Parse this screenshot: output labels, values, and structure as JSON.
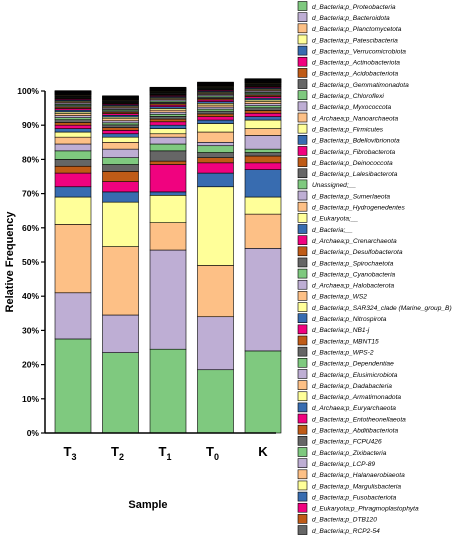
{
  "chart_data": {
    "type": "bar",
    "stacked": true,
    "xlabel": "Sample",
    "ylabel": "Relative Frequency",
    "ylim": [
      0,
      100
    ],
    "yticks": [
      "0%",
      "10%",
      "20%",
      "30%",
      "40%",
      "50%",
      "60%",
      "70%",
      "80%",
      "90%",
      "100%"
    ],
    "categories": [
      {
        "main": "T",
        "sub": "3"
      },
      {
        "main": "T",
        "sub": "2"
      },
      {
        "main": "T",
        "sub": "1"
      },
      {
        "main": "T",
        "sub": "0"
      },
      {
        "main": "K",
        "sub": ""
      }
    ],
    "series": [
      {
        "name": "d_Bacteria;p_Proteobacteria",
        "color": "#7fc97f",
        "values": [
          27.5,
          23.5,
          24.5,
          18.5,
          24
        ]
      },
      {
        "name": "d_Bacteria;p_Bacteroidota",
        "color": "#beaed4",
        "values": [
          13.5,
          11,
          29,
          15.5,
          30
        ]
      },
      {
        "name": "d_Bacteria;p_Planctomycetota",
        "color": "#fdc086",
        "values": [
          20,
          20,
          8,
          15,
          10
        ]
      },
      {
        "name": "d_Bacteria;p_Patescibacteria",
        "color": "#ffff99",
        "values": [
          8,
          13,
          8,
          23,
          5
        ]
      },
      {
        "name": "d_Bacteria;p_Verrucomicrobiota",
        "color": "#386cb0",
        "values": [
          3,
          3,
          1,
          4,
          8
        ]
      },
      {
        "name": "d_Bacteria;p_Actinobacteriota",
        "color": "#f0027f",
        "values": [
          4,
          3,
          8,
          3,
          2
        ]
      },
      {
        "name": "d_Bacteria;p_Acidobacteriota",
        "color": "#bf5b17",
        "values": [
          2,
          3,
          1,
          1.5,
          2
        ]
      },
      {
        "name": "d_Bacteria;p_Gemmatimonadota",
        "color": "#666666",
        "values": [
          2,
          2,
          3,
          1.5,
          1
        ]
      },
      {
        "name": "d_Bacteria;p_Chloroflexi",
        "color": "#7fc97f",
        "values": [
          2.5,
          2,
          2,
          2,
          1
        ]
      },
      {
        "name": "d_Bacteria;p_Myxococcota",
        "color": "#beaed4",
        "values": [
          2,
          2.5,
          2,
          1,
          4
        ]
      },
      {
        "name": "d_Archaea;p_Nanoarchaeota",
        "color": "#fdc086",
        "values": [
          2,
          2,
          1,
          3,
          2
        ]
      },
      {
        "name": "d_Bacteria;p_Firmicutes",
        "color": "#ffff99",
        "values": [
          1.5,
          1.5,
          1.5,
          2.5,
          2.5
        ]
      },
      {
        "name": "d_Bacteria;p_Bdellovibrionota",
        "color": "#386cb0",
        "values": [
          1,
          1,
          1,
          1,
          1
        ]
      },
      {
        "name": "d_Bacteria;p_Fibrobacterota",
        "color": "#f0027f",
        "values": [
          1,
          1,
          1,
          1,
          1
        ]
      },
      {
        "name": "d_Bacteria;p_Deinococcota",
        "color": "#bf5b17",
        "values": [
          0.8,
          0.8,
          0.8,
          0.8,
          0.8
        ]
      },
      {
        "name": "d_Bacteria;p_Lalesibacterota",
        "color": "#666666",
        "values": [
          0.8,
          0.8,
          0.8,
          0.8,
          0.8
        ]
      },
      {
        "name": "Unassigned;__",
        "color": "#7fc97f",
        "values": [
          0.6,
          0.6,
          0.6,
          0.6,
          0.6
        ]
      },
      {
        "name": "d_Bacteria;p_Sumerlaeota",
        "color": "#beaed4",
        "values": [
          0.6,
          0.6,
          0.6,
          0.6,
          0.6
        ]
      },
      {
        "name": "d_Bacteria;p_Hydrogenedentes",
        "color": "#fdc086",
        "values": [
          0.6,
          0.6,
          0.6,
          0.6,
          0.6
        ]
      },
      {
        "name": "d_Eukaryota;__",
        "color": "#ffff99",
        "values": [
          0.5,
          0.5,
          0.5,
          0.5,
          0.5
        ]
      },
      {
        "name": "d_Bacteria;__",
        "color": "#386cb0",
        "values": [
          0.5,
          0.5,
          0.5,
          0.5,
          0.5
        ]
      },
      {
        "name": "d_Archaea;p_Crenarchaeota",
        "color": "#f0027f",
        "values": [
          0.5,
          0.5,
          0.5,
          0.5,
          0.5
        ]
      },
      {
        "name": "d_Bacteria;p_Desulfobacterota",
        "color": "#bf5b17",
        "values": [
          0.4,
          0.4,
          0.4,
          0.4,
          0.4
        ]
      },
      {
        "name": "d_Bacteria;p_Spirochaetota",
        "color": "#666666",
        "values": [
          0.4,
          0.4,
          0.4,
          0.4,
          0.4
        ]
      },
      {
        "name": "d_Bacteria;p_Cyanobacteria",
        "color": "#7fc97f",
        "values": [
          0.4,
          0.4,
          0.4,
          0.4,
          0.4
        ]
      },
      {
        "name": "d_Archaea;p_Halobacterota",
        "color": "#beaed4",
        "values": [
          0.4,
          0.4,
          0.4,
          0.4,
          0.4
        ]
      },
      {
        "name": "d_Bacteria;p_WS2",
        "color": "#fdc086",
        "values": [
          0.3,
          0.3,
          0.3,
          0.3,
          0.3
        ]
      },
      {
        "name": "d_Bacteria;p_SAR324_clade (Marine_group_B)",
        "color": "#ffff99",
        "values": [
          0.3,
          0.3,
          0.3,
          0.3,
          0.3
        ]
      },
      {
        "name": "d_Bacteria;p_Nitrospirota",
        "color": "#386cb0",
        "values": [
          0.3,
          0.3,
          0.3,
          0.3,
          0.3
        ]
      },
      {
        "name": "d_Bacteria;p_NB1-j",
        "color": "#f0027f",
        "values": [
          0.3,
          0.3,
          0.3,
          0.3,
          0.3
        ]
      },
      {
        "name": "d_Bacteria;p_MBNT15",
        "color": "#bf5b17",
        "values": [
          0.2,
          0.2,
          0.2,
          0.2,
          0.2
        ]
      },
      {
        "name": "d_Bacteria;p_WPS-2",
        "color": "#666666",
        "values": [
          0.2,
          0.2,
          0.2,
          0.2,
          0.2
        ]
      },
      {
        "name": "d_Bacteria;p_Dependentiae",
        "color": "#7fc97f",
        "values": [
          0.2,
          0.2,
          0.2,
          0.2,
          0.2
        ]
      },
      {
        "name": "d_Bacteria;p_Elusimicrobiota",
        "color": "#beaed4",
        "values": [
          0.2,
          0.2,
          0.2,
          0.2,
          0.2
        ]
      },
      {
        "name": "d_Bacteria;p_Dadabacteria",
        "color": "#fdc086",
        "values": [
          0.2,
          0.2,
          0.2,
          0.2,
          0.2
        ]
      },
      {
        "name": "d_Bacteria;p_Armatimonadota",
        "color": "#ffff99",
        "values": [
          0.2,
          0.2,
          0.2,
          0.2,
          0.2
        ]
      },
      {
        "name": "d_Archaea;p_Euryarchaeota",
        "color": "#386cb0",
        "values": [
          0.1,
          0.1,
          0.1,
          0.1,
          0.1
        ]
      },
      {
        "name": "d_Bacteria;p_Entotheonellaeota",
        "color": "#f0027f",
        "values": [
          0.1,
          0.1,
          0.1,
          0.1,
          0.1
        ]
      },
      {
        "name": "d_Bacteria;p_Abditibacteriota",
        "color": "#bf5b17",
        "values": [
          0.1,
          0.1,
          0.1,
          0.1,
          0.1
        ]
      },
      {
        "name": "d_Bacteria;p_FCPU426",
        "color": "#666666",
        "values": [
          0.1,
          0.1,
          0.1,
          0.1,
          0.1
        ]
      },
      {
        "name": "d_Bacteria;p_Zixibacteria",
        "color": "#7fc97f",
        "values": [
          0.1,
          0.1,
          0.1,
          0.1,
          0.1
        ]
      },
      {
        "name": "d_Bacteria;p_LCP-89",
        "color": "#beaed4",
        "values": [
          0.1,
          0.1,
          0.1,
          0.1,
          0.1
        ]
      },
      {
        "name": "d_Bacteria;p_Halanaerobiaeota",
        "color": "#fdc086",
        "values": [
          0.1,
          0.1,
          0.1,
          0.1,
          0.1
        ]
      },
      {
        "name": "d_Bacteria;p_Margulisbacteria",
        "color": "#ffff99",
        "values": [
          0.1,
          0.1,
          0.1,
          0.1,
          0.1
        ]
      },
      {
        "name": "d_Bacteria;p_Fusobacteriota",
        "color": "#386cb0",
        "values": [
          0.1,
          0.1,
          0.1,
          0.1,
          0.1
        ]
      },
      {
        "name": "d_Eukaryota;p_Phragmoplastophyta",
        "color": "#f0027f",
        "values": [
          0.1,
          0.1,
          0.1,
          0.1,
          0.1
        ]
      },
      {
        "name": "d_Bacteria;p_DTB120",
        "color": "#bf5b17",
        "values": [
          0.1,
          0.1,
          0.1,
          0.1,
          0.1
        ]
      },
      {
        "name": "d_Bacteria;p_RCP2-54",
        "color": "#666666",
        "values": [
          0.1,
          0.1,
          0.1,
          0.1,
          0.1
        ]
      }
    ]
  }
}
